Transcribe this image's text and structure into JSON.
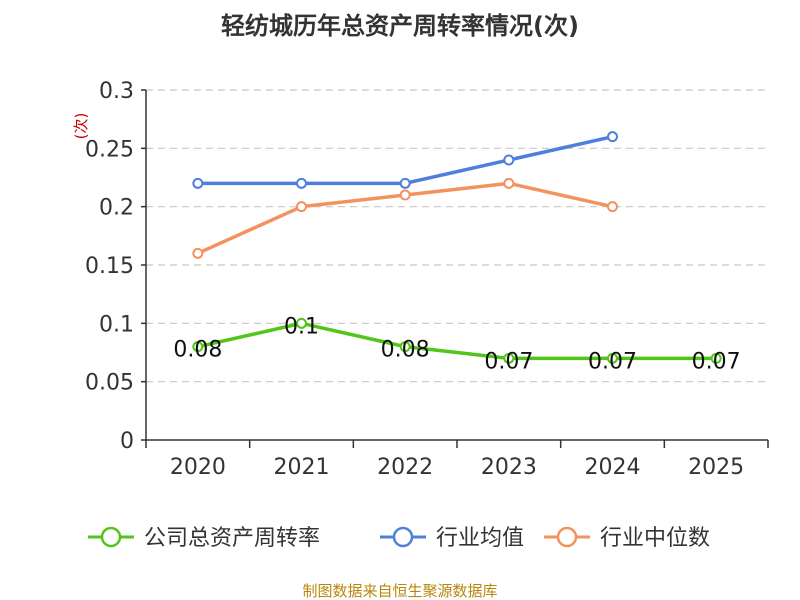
{
  "chart_data": {
    "type": "line",
    "title": "轻纺城历年总资产周转率情况(次)",
    "ylabel": "(次)",
    "xlabel": "",
    "categories": [
      "2020",
      "2021",
      "2022",
      "2023",
      "2024",
      "2025"
    ],
    "ylim": [
      0,
      0.3
    ],
    "yticks": [
      "0",
      "0.05",
      "0.1",
      "0.15",
      "0.2",
      "0.25",
      "0.3"
    ],
    "grid": "horizontal-dashed",
    "legend_position": "bottom",
    "series": [
      {
        "name": "公司总资产周转率",
        "color": "#52c41a",
        "values": [
          0.08,
          0.1,
          0.08,
          0.07,
          0.07,
          0.07
        ],
        "labels": [
          "0.08",
          "0.1",
          "0.08",
          "0.07",
          "0.07",
          "0.07"
        ]
      },
      {
        "name": "行业均值",
        "color": "#4f7fdc",
        "values": [
          0.22,
          0.22,
          0.22,
          0.24,
          0.26,
          null
        ]
      },
      {
        "name": "行业中位数",
        "color": "#f4925e",
        "values": [
          0.16,
          0.2,
          0.21,
          0.22,
          0.2,
          null
        ]
      }
    ],
    "source": "制图数据来自恒生聚源数据库"
  }
}
